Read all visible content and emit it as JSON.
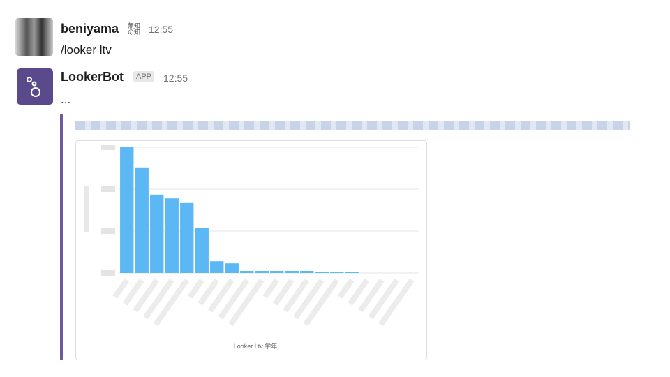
{
  "messages": [
    {
      "user": "beniyama",
      "badge": "無知の知",
      "time": "12:55",
      "text": "/looker ltv"
    },
    {
      "user": "LookerBot",
      "badge": "APP",
      "time": "12:55",
      "text": "..."
    }
  ],
  "chart_data": {
    "type": "bar",
    "x_label": "Looker Ltv 学年",
    "categories": [
      null,
      null,
      null,
      null,
      null,
      null,
      null,
      null,
      null,
      null,
      null,
      null,
      null,
      null,
      null,
      null,
      null,
      null,
      null,
      null
    ],
    "values": [
      3.0,
      2.52,
      1.87,
      1.78,
      1.67,
      1.08,
      0.28,
      0.23,
      0.05,
      0.05,
      0.05,
      0.05,
      0.05,
      0.02,
      0.02,
      0.02,
      0,
      0,
      0,
      0
    ],
    "color": "#5bb8f5",
    "ylim": [
      0,
      3
    ],
    "yticks": [
      0,
      1,
      2,
      3
    ],
    "grid": true
  }
}
